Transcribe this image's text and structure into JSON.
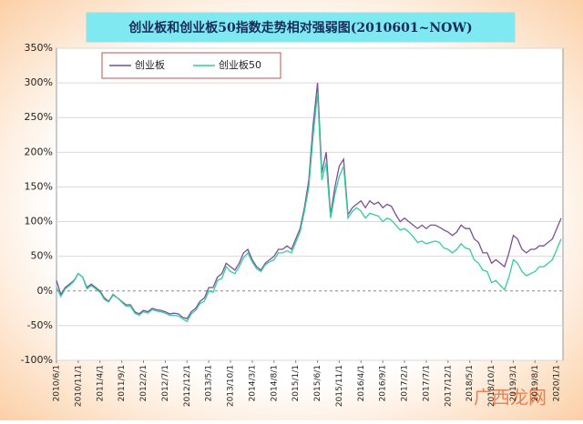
{
  "chart_data": {
    "type": "line",
    "title": "创业板和创业板50指数走势相对强弱图(2010601~NOW)",
    "watermark": "广西龙网",
    "x": [
      "2010/6/1",
      "2010/7/1",
      "2010/8/1",
      "2010/9/1",
      "2010/10/1",
      "2010/11/1",
      "2010/12/1",
      "2011/1/1",
      "2011/2/1",
      "2011/3/1",
      "2011/4/1",
      "2011/5/1",
      "2011/6/1",
      "2011/7/1",
      "2011/8/1",
      "2011/9/1",
      "2011/10/1",
      "2011/11/1",
      "2011/12/1",
      "2012/1/1",
      "2012/2/1",
      "2012/3/1",
      "2012/4/1",
      "2012/5/1",
      "2012/6/1",
      "2012/7/1",
      "2012/8/1",
      "2012/9/1",
      "2012/10/1",
      "2012/11/1",
      "2012/12/1",
      "2013/1/1",
      "2013/2/1",
      "2013/3/1",
      "2013/4/1",
      "2013/5/1",
      "2013/6/1",
      "2013/7/1",
      "2013/8/1",
      "2013/9/1",
      "2013/10/1",
      "2013/11/1",
      "2013/12/1",
      "2014/1/1",
      "2014/2/1",
      "2014/3/1",
      "2014/4/1",
      "2014/5/1",
      "2014/6/1",
      "2014/7/1",
      "2014/8/1",
      "2014/9/1",
      "2014/10/1",
      "2014/11/1",
      "2014/12/1",
      "2015/1/1",
      "2015/2/1",
      "2015/3/1",
      "2015/4/1",
      "2015/5/1",
      "2015/6/1",
      "2015/7/1",
      "2015/8/1",
      "2015/9/1",
      "2015/10/1",
      "2015/11/1",
      "2015/12/1",
      "2016/1/1",
      "2016/2/1",
      "2016/3/1",
      "2016/4/1",
      "2016/5/1",
      "2016/6/1",
      "2016/7/1",
      "2016/8/1",
      "2016/9/1",
      "2016/10/1",
      "2016/11/1",
      "2016/12/1",
      "2017/1/1",
      "2017/2/1",
      "2017/3/1",
      "2017/4/1",
      "2017/5/1",
      "2017/6/1",
      "2017/7/1",
      "2017/8/1",
      "2017/9/1",
      "2017/10/1",
      "2017/11/1",
      "2017/12/1",
      "2018/1/1",
      "2018/2/1",
      "2018/3/1",
      "2018/4/1",
      "2018/5/1",
      "2018/6/1",
      "2018/7/1",
      "2018/8/1",
      "2018/9/1",
      "2018/10/1",
      "2018/11/1",
      "2018/12/1",
      "2019/1/1",
      "2019/2/1",
      "2019/3/1",
      "2019/4/1",
      "2019/5/1",
      "2019/6/1",
      "2019/7/1",
      "2019/8/1",
      "2019/9/1",
      "2019/10/1",
      "2019/11/1",
      "2019/12/1",
      "2020/1/1",
      "2020/2/1"
    ],
    "xlim": [
      "2010/6/1",
      "2020/2/1"
    ],
    "xticks": [
      "2010/6/1",
      "2010/11/1",
      "2011/4/1",
      "2011/9/1",
      "2012/2/1",
      "2012/7/1",
      "2012/12/1",
      "2013/5/1",
      "2013/10/1",
      "2014/3/1",
      "2014/8/1",
      "2015/1/1",
      "2015/6/1",
      "2015/11/1",
      "2016/4/1",
      "2016/9/1",
      "2017/2/1",
      "2017/7/1",
      "2017/12/1",
      "2018/5/1",
      "2018/10/1",
      "2019/3/1",
      "2019/8/1",
      "2020/1/1"
    ],
    "series": [
      {
        "name": "创业板",
        "color": "#7a4f9c",
        "values": [
          15,
          -5,
          5,
          10,
          15,
          25,
          20,
          5,
          10,
          5,
          0,
          -10,
          -15,
          -5,
          -10,
          -15,
          -20,
          -20,
          -30,
          -33,
          -28,
          -30,
          -25,
          -27,
          -28,
          -30,
          -33,
          -32,
          -33,
          -38,
          -40,
          -30,
          -25,
          -15,
          -10,
          5,
          5,
          20,
          25,
          40,
          35,
          30,
          40,
          55,
          60,
          45,
          35,
          30,
          40,
          45,
          50,
          60,
          60,
          65,
          60,
          75,
          90,
          120,
          160,
          240,
          300,
          170,
          200,
          110,
          150,
          180,
          190,
          110,
          120,
          125,
          130,
          120,
          130,
          125,
          128,
          120,
          125,
          122,
          110,
          100,
          105,
          100,
          95,
          90,
          95,
          90,
          95,
          95,
          92,
          88,
          85,
          80,
          85,
          95,
          90,
          90,
          75,
          70,
          55,
          55,
          40,
          45,
          40,
          35,
          55,
          80,
          75,
          60,
          55,
          60,
          60,
          65,
          65,
          70,
          75,
          90,
          105
        ]
      },
      {
        "name": "创业板50",
        "color": "#2fcf9a",
        "values": [
          5,
          -8,
          3,
          8,
          14,
          25,
          20,
          3,
          8,
          3,
          -2,
          -12,
          -16,
          -6,
          -10,
          -16,
          -22,
          -22,
          -32,
          -35,
          -30,
          -32,
          -27,
          -29,
          -30,
          -32,
          -35,
          -35,
          -36,
          -40,
          -44,
          -33,
          -28,
          -18,
          -15,
          0,
          -2,
          15,
          18,
          35,
          28,
          25,
          35,
          48,
          55,
          42,
          32,
          28,
          38,
          42,
          45,
          55,
          55,
          58,
          55,
          70,
          85,
          115,
          150,
          225,
          285,
          160,
          185,
          105,
          140,
          165,
          180,
          105,
          115,
          120,
          115,
          105,
          112,
          110,
          108,
          100,
          105,
          102,
          95,
          88,
          90,
          85,
          78,
          70,
          72,
          68,
          70,
          72,
          70,
          62,
          60,
          55,
          60,
          68,
          62,
          60,
          45,
          40,
          30,
          28,
          12,
          15,
          8,
          2,
          20,
          45,
          40,
          28,
          22,
          25,
          28,
          35,
          35,
          40,
          45,
          60,
          75
        ]
      }
    ],
    "ylim": [
      -100,
      350
    ],
    "yticks": [
      {
        "value": -100,
        "label": "-100%"
      },
      {
        "value": -50,
        "label": "-50%"
      },
      {
        "value": 0,
        "label": "0%"
      },
      {
        "value": 50,
        "label": "50%"
      },
      {
        "value": 100,
        "label": "100%"
      },
      {
        "value": 150,
        "label": "150%"
      },
      {
        "value": 200,
        "label": "200%"
      },
      {
        "value": 250,
        "label": "250%"
      },
      {
        "value": 300,
        "label": "300%"
      },
      {
        "value": 350,
        "label": "350%"
      }
    ],
    "grid": true
  }
}
